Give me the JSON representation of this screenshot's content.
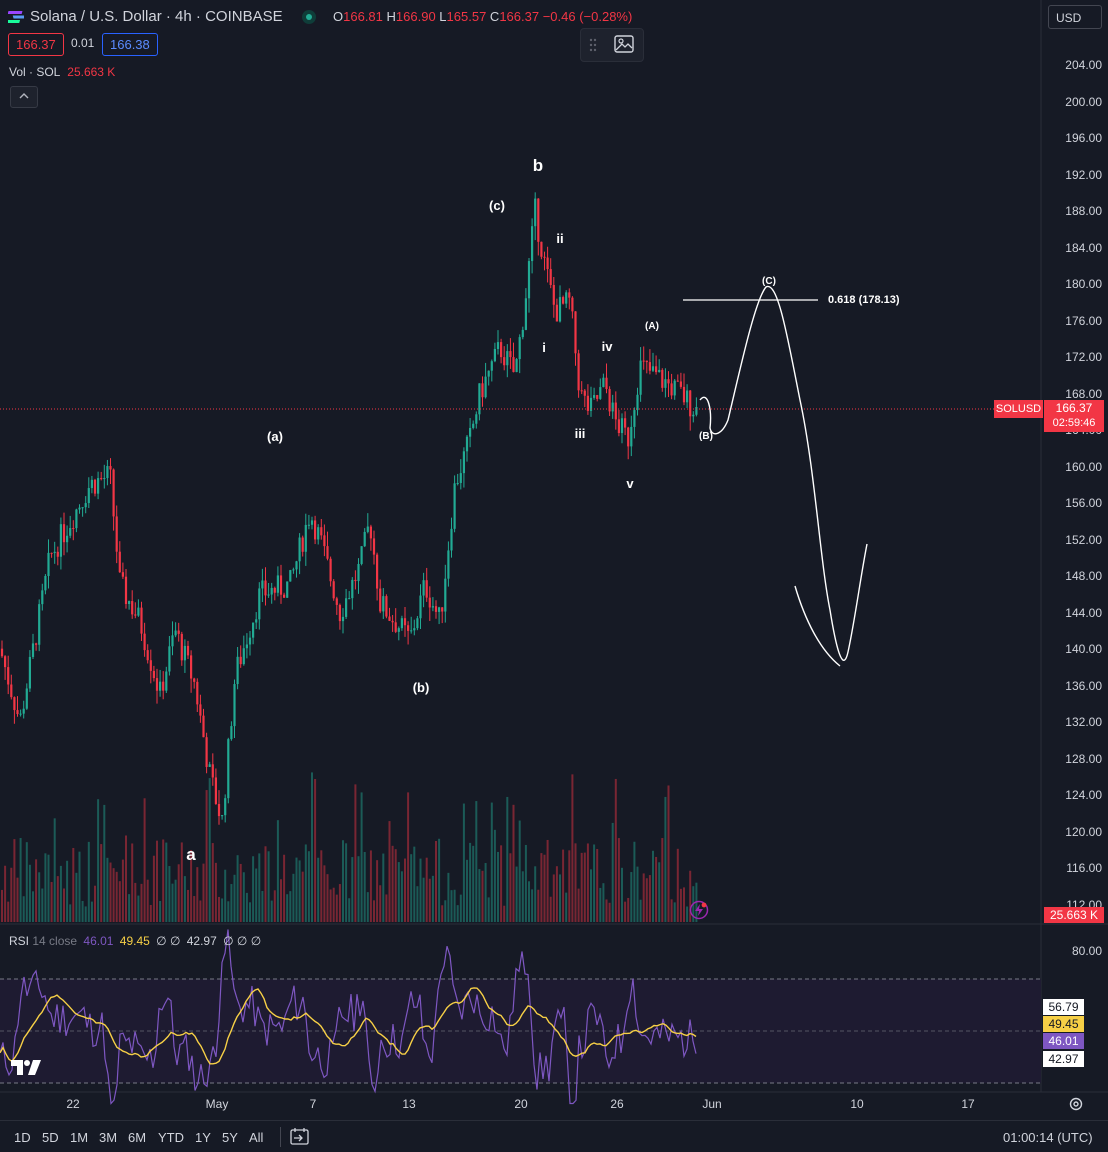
{
  "header": {
    "title": "Solana / U.S. Dollar · 4h · COINBASE",
    "ohlc": [
      {
        "k": "O",
        "v": "166.81"
      },
      {
        "k": "H",
        "v": "166.90"
      },
      {
        "k": "L",
        "v": "165.57"
      },
      {
        "k": "C",
        "v": "166.37"
      }
    ],
    "change": "−0.46 (−0.28%)",
    "sell_price": "166.37",
    "spread": "0.01",
    "buy_price": "166.38",
    "currency": "USD"
  },
  "volume_legend": {
    "label": "Vol · SOL",
    "value": "25.663 K"
  },
  "price_axis": [
    "204.00",
    "200.00",
    "196.00",
    "192.00",
    "188.00",
    "184.00",
    "180.00",
    "176.00",
    "172.00",
    "168.00",
    "164.00",
    "160.00",
    "156.00",
    "152.00",
    "148.00",
    "144.00",
    "140.00",
    "136.00",
    "132.00",
    "128.00",
    "124.00",
    "120.00",
    "116.00",
    "112.00"
  ],
  "symbol_tag": {
    "symbol": "SOLUSD",
    "price": "166.37",
    "countdown": "02:59:46"
  },
  "volume_tag": "25.663 K",
  "fib_label": "0.618 (178.13)",
  "wave_labels": [
    "b",
    "(c)",
    "ii",
    "i",
    "iv",
    "iii",
    "v",
    "(A)",
    "(C)",
    "(B)",
    "(a)",
    "(b)",
    "a"
  ],
  "rsi": {
    "legend_name": "RSI",
    "legend_params": "14 close",
    "rsi_value": "46.01",
    "ma_value": "49.45",
    "extra": "∅ ∅",
    "value3": "42.97",
    "extra2": "∅ ∅ ∅",
    "axis_top": "80.00",
    "tags": {
      "upper": "56.79",
      "ma": "49.45",
      "rsi": "46.01",
      "lower": "42.97"
    }
  },
  "time_axis": [
    "22",
    "May",
    "7",
    "13",
    "20",
    "26",
    "Jun",
    "10",
    "17"
  ],
  "bottom": {
    "ranges": [
      "1D",
      "5D",
      "1M",
      "3M",
      "6M",
      "YTD",
      "1Y",
      "5Y",
      "All"
    ],
    "clock": "01:00:14 (UTC)"
  },
  "colors": {
    "background": "#161a25",
    "up": "#22ab94",
    "down": "#f23645",
    "rsi": "#7e57c2",
    "rsi_ma": "#f7d046",
    "accent_blue": "#2962ff"
  },
  "icons": [
    "solana-icon",
    "market-open-icon",
    "drag-handle-icon",
    "screenshot-icon",
    "chevron-up-icon",
    "tradingview-logo-icon",
    "lightning-icon",
    "settings-icon",
    "date-range-icon"
  ]
}
